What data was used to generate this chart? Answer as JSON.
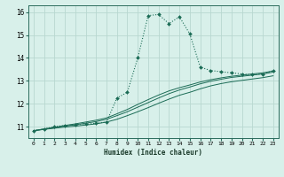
{
  "title": "",
  "xlabel": "Humidex (Indice chaleur)",
  "ylabel": "",
  "xlim": [
    -0.5,
    23.5
  ],
  "ylim": [
    10.5,
    16.3
  ],
  "background_color": "#d8f0ea",
  "grid_color": "#b8d8d0",
  "line_color": "#1a6b55",
  "marker_size": 2.5,
  "xtick_labels": [
    "0",
    "1",
    "2",
    "3",
    "4",
    "5",
    "6",
    "7",
    "8",
    "9",
    "10",
    "11",
    "12",
    "13",
    "14",
    "15",
    "16",
    "17",
    "18",
    "19",
    "20",
    "21",
    "22",
    "23"
  ],
  "ytick_values": [
    11,
    12,
    13,
    14,
    15,
    16
  ],
  "series": [
    {
      "x": [
        0,
        1,
        2,
        3,
        4,
        5,
        6,
        7,
        8,
        9,
        10,
        11,
        12,
        13,
        14,
        15,
        16,
        17,
        18,
        19,
        20,
        21,
        22,
        23
      ],
      "y": [
        10.82,
        10.9,
        11.0,
        11.05,
        11.08,
        11.1,
        11.15,
        11.2,
        12.25,
        12.5,
        14.0,
        15.85,
        15.9,
        15.5,
        15.8,
        15.05,
        13.6,
        13.45,
        13.4,
        13.35,
        13.3,
        13.27,
        13.3,
        13.45
      ],
      "linestyle": "dotted",
      "linewidth": 0.8,
      "marker": "D",
      "markersize": 2.0
    },
    {
      "x": [
        0,
        1,
        2,
        3,
        4,
        5,
        6,
        7,
        8,
        9,
        10,
        11,
        12,
        13,
        14,
        15,
        16,
        17,
        18,
        19,
        20,
        21,
        22,
        23
      ],
      "y": [
        10.82,
        10.88,
        10.93,
        10.98,
        11.02,
        11.07,
        11.12,
        11.2,
        11.32,
        11.48,
        11.65,
        11.83,
        12.02,
        12.2,
        12.37,
        12.5,
        12.65,
        12.78,
        12.88,
        12.96,
        13.02,
        13.08,
        13.14,
        13.22
      ],
      "linestyle": "solid",
      "linewidth": 0.7,
      "marker": null,
      "markersize": 0
    },
    {
      "x": [
        0,
        1,
        2,
        3,
        4,
        5,
        6,
        7,
        8,
        9,
        10,
        11,
        12,
        13,
        14,
        15,
        16,
        17,
        18,
        19,
        20,
        21,
        22,
        23
      ],
      "y": [
        10.82,
        10.88,
        10.95,
        11.02,
        11.08,
        11.15,
        11.22,
        11.32,
        11.48,
        11.65,
        11.85,
        12.05,
        12.25,
        12.44,
        12.6,
        12.73,
        12.87,
        12.98,
        13.07,
        13.15,
        13.2,
        13.25,
        13.3,
        13.38
      ],
      "linestyle": "solid",
      "linewidth": 0.7,
      "marker": null,
      "markersize": 0
    },
    {
      "x": [
        0,
        1,
        2,
        3,
        4,
        5,
        6,
        7,
        8,
        9,
        10,
        11,
        12,
        13,
        14,
        15,
        16,
        17,
        18,
        19,
        20,
        21,
        22,
        23
      ],
      "y": [
        10.82,
        10.9,
        10.97,
        11.05,
        11.12,
        11.2,
        11.28,
        11.38,
        11.56,
        11.75,
        11.97,
        12.18,
        12.38,
        12.56,
        12.7,
        12.82,
        12.95,
        13.05,
        13.13,
        13.2,
        13.25,
        13.3,
        13.35,
        13.43
      ],
      "linestyle": "solid",
      "linewidth": 0.7,
      "marker": null,
      "markersize": 0
    }
  ]
}
